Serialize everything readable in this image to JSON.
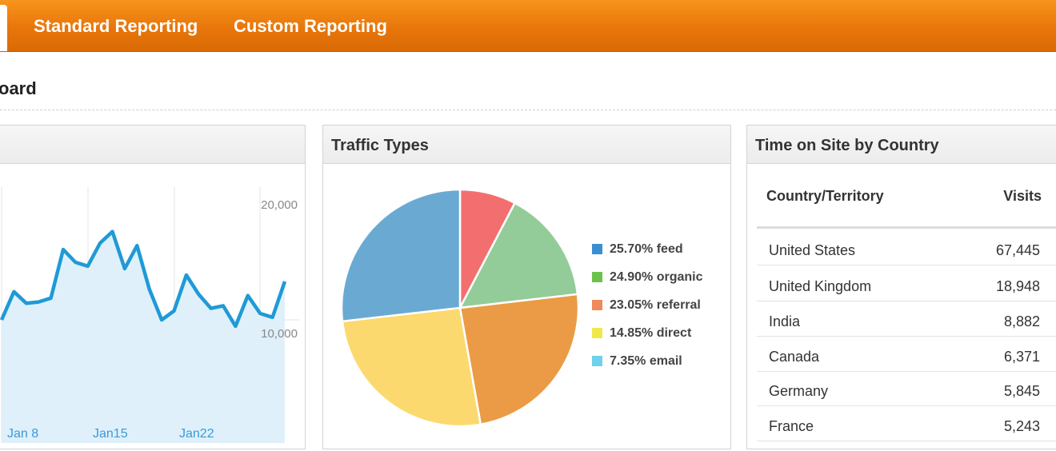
{
  "nav": {
    "items": [
      {
        "label": "Standard Reporting"
      },
      {
        "label": "Custom Reporting"
      }
    ]
  },
  "page": {
    "title": "oard"
  },
  "colors": {
    "nav_orange": "#e8760a",
    "line": "#1f9ad6",
    "area": "#dff0fa"
  },
  "visits_panel": {
    "title": "",
    "chart_data": {
      "type": "area",
      "title": "",
      "xlabel": "",
      "ylabel": "",
      "x_tick_labels": [
        "Jan 8",
        "Jan15",
        "Jan22"
      ],
      "y_tick_labels": [
        "20,000",
        "10,000"
      ],
      "ylim": [
        0,
        20000
      ],
      "series": [
        {
          "values": [
            10000,
            12200,
            11300,
            11400,
            11700,
            15500,
            14500,
            14200,
            16000,
            16900,
            14000,
            15800,
            12400,
            10000,
            10700,
            13500,
            12000,
            10900,
            11100,
            9500,
            11900,
            10500,
            10200,
            13000
          ]
        }
      ]
    }
  },
  "traffic_panel": {
    "title": "Traffic Types",
    "chart_data": {
      "type": "pie",
      "title": "Traffic Types",
      "slices": [
        {
          "label": "25.70% feed",
          "value": 25.7,
          "color": "#6aaad2",
          "legend_color": "#3a8fd0"
        },
        {
          "label": "24.90% organic",
          "value": 24.9,
          "color": "#fbd96e",
          "legend_color": "#6cc24a"
        },
        {
          "label": "23.05% referral",
          "value": 23.05,
          "color": "#eb9b45",
          "legend_color": "#f08a5a"
        },
        {
          "label": "14.85% direct",
          "value": 14.85,
          "color": "#93cc98",
          "legend_color": "#f0e84a"
        },
        {
          "label": "7.35% email",
          "value": 7.35,
          "color": "#f36f6f",
          "legend_color": "#6fd1ec"
        }
      ]
    }
  },
  "country_panel": {
    "title": "Time on Site by Country",
    "columns": [
      "Country/Territory",
      "Visits"
    ],
    "rows": [
      {
        "country": "United States",
        "visits": "67,445"
      },
      {
        "country": "United Kingdom",
        "visits": "18,948"
      },
      {
        "country": "India",
        "visits": "8,882"
      },
      {
        "country": "Canada",
        "visits": "6,371"
      },
      {
        "country": "Germany",
        "visits": "5,845"
      },
      {
        "country": "France",
        "visits": "5,243"
      }
    ]
  }
}
